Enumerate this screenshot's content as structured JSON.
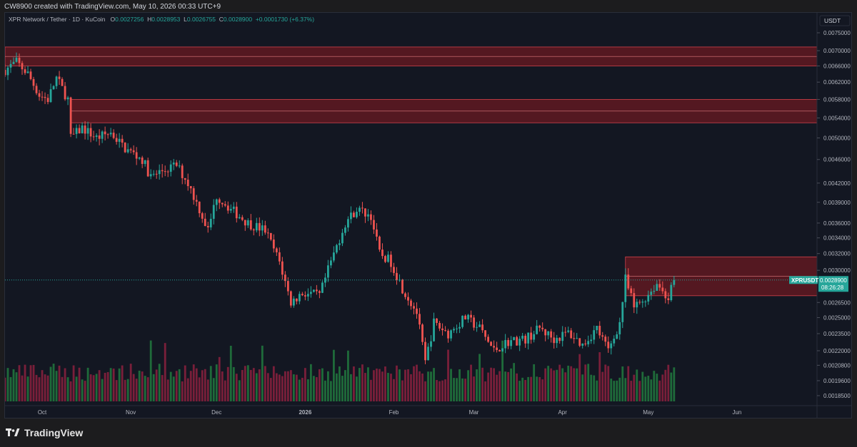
{
  "header": {
    "caption": "CW8900 created with TradingView.com, May 10, 2026 00:33 UTC+9"
  },
  "legend": {
    "symbol_desc": "XPR Network / Tether · 1D · KuCoin",
    "open_label": "O",
    "open": "0.0027256",
    "high_label": "H",
    "high": "0.0028953",
    "low_label": "L",
    "low": "0.0026755",
    "close_label": "C",
    "close": "0.0028900",
    "change": "+0.0001730 (+6.37%)"
  },
  "price_axis": {
    "currency": "USDT",
    "ticks": [
      "0.0075000",
      "0.0070000",
      "0.0066000",
      "0.0062000",
      "0.0058000",
      "0.0054000",
      "0.0050000",
      "0.0046000",
      "0.0042000",
      "0.0039000",
      "0.0036000",
      "0.0034000",
      "0.0032000",
      "0.0030000",
      "0.0026500",
      "0.0025000",
      "0.0023500",
      "0.0022000",
      "0.0020800",
      "0.0019600",
      "0.0018500"
    ],
    "last_label": "XPRUSDT",
    "last_price": "0.0028900",
    "countdown": "08:26:28"
  },
  "time_axis": {
    "labels": [
      "Oct",
      "Nov",
      "Dec",
      "2026",
      "Feb",
      "Mar",
      "Apr",
      "May",
      "Jun"
    ]
  },
  "footer": {
    "brand": "TradingView"
  },
  "colors": {
    "up": "#26a69a",
    "down": "#ef5350",
    "zone": "#6b1a22",
    "background": "#131722",
    "vol_up": "#1f6b3a",
    "vol_down": "#7a1f3a"
  },
  "chart_data": {
    "type": "candlestick",
    "symbol": "XPRUSDT",
    "interval": "1D",
    "y_scale": "log",
    "ylim": [
      0.00178,
      0.0081
    ],
    "x_start": "2025-09-18",
    "x_end": "2026-06-29",
    "last_close": 0.00289,
    "zones": [
      {
        "from": 0.0066,
        "to": 0.0071,
        "start": "2025-09-18"
      },
      {
        "from": 0.0053,
        "to": 0.0058,
        "start": "2025-10-11"
      },
      {
        "from": 0.00272,
        "to": 0.00316,
        "start": "2026-04-23"
      }
    ],
    "path": [
      [
        "2025-09-18",
        0.0065
      ],
      [
        "2025-09-22",
        0.0067
      ],
      [
        "2025-09-26",
        0.0064
      ],
      [
        "2025-09-30",
        0.0059
      ],
      [
        "2025-10-03",
        0.0058
      ],
      [
        "2025-10-06",
        0.0063
      ],
      [
        "2025-10-10",
        0.0058
      ],
      [
        "2025-10-11",
        0.005
      ],
      [
        "2025-10-15",
        0.0052
      ],
      [
        "2025-10-20",
        0.005
      ],
      [
        "2025-10-25",
        0.0051
      ],
      [
        "2025-10-30",
        0.0048
      ],
      [
        "2025-11-05",
        0.0046
      ],
      [
        "2025-11-08",
        0.0043
      ],
      [
        "2025-11-12",
        0.0044
      ],
      [
        "2025-11-17",
        0.0045
      ],
      [
        "2025-11-21",
        0.0042
      ],
      [
        "2025-11-25",
        0.0038
      ],
      [
        "2025-11-28",
        0.0035
      ],
      [
        "2025-12-01",
        0.004
      ],
      [
        "2025-12-06",
        0.0038
      ],
      [
        "2025-12-12",
        0.0036
      ],
      [
        "2025-12-18",
        0.0035
      ],
      [
        "2025-12-23",
        0.0031
      ],
      [
        "2025-12-27",
        0.00265
      ],
      [
        "2025-12-31",
        0.00275
      ],
      [
        "2026-01-06",
        0.00272
      ],
      [
        "2026-01-10",
        0.0031
      ],
      [
        "2026-01-15",
        0.0036
      ],
      [
        "2026-01-19",
        0.0038
      ],
      [
        "2026-01-24",
        0.0037
      ],
      [
        "2026-01-27",
        0.0032
      ],
      [
        "2026-01-31",
        0.0031
      ],
      [
        "2026-02-04",
        0.0028
      ],
      [
        "2026-02-09",
        0.00255
      ],
      [
        "2026-02-12",
        0.0021
      ],
      [
        "2026-02-15",
        0.00245
      ],
      [
        "2026-02-20",
        0.00235
      ],
      [
        "2026-02-26",
        0.0025
      ],
      [
        "2026-03-03",
        0.0024
      ],
      [
        "2026-03-08",
        0.0022
      ],
      [
        "2026-03-13",
        0.00228
      ],
      [
        "2026-03-19",
        0.0023
      ],
      [
        "2026-03-24",
        0.0024
      ],
      [
        "2026-03-29",
        0.0023
      ],
      [
        "2026-04-03",
        0.00236
      ],
      [
        "2026-04-08",
        0.00225
      ],
      [
        "2026-04-13",
        0.0024
      ],
      [
        "2026-04-17",
        0.0022
      ],
      [
        "2026-04-21",
        0.00245
      ],
      [
        "2026-04-23",
        0.0029
      ],
      [
        "2026-04-26",
        0.0026
      ],
      [
        "2026-04-30",
        0.0027
      ],
      [
        "2026-05-04",
        0.00285
      ],
      [
        "2026-05-08",
        0.0027
      ],
      [
        "2026-05-10",
        0.00289
      ]
    ],
    "volume_ylim": [
      0,
      100
    ]
  }
}
